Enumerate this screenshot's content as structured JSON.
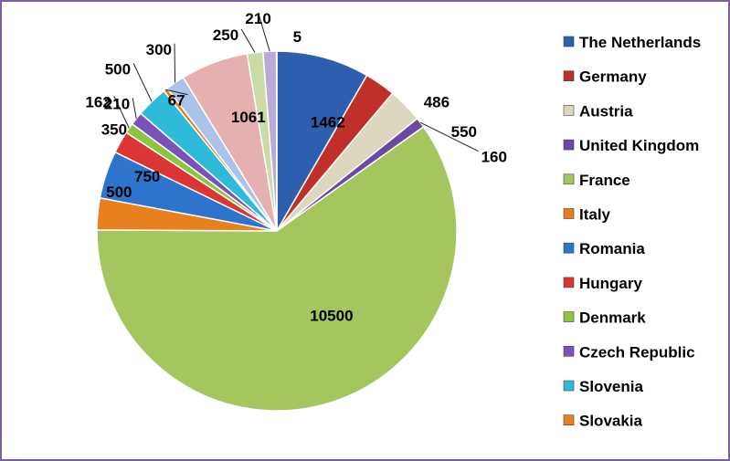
{
  "chart_data": {
    "type": "pie",
    "title": "",
    "legend_position": "right",
    "slices": [
      {
        "name": "The Netherlands",
        "value": 1462,
        "color": "#2e5fae"
      },
      {
        "name": "Germany",
        "value": 486,
        "color": "#c0302a"
      },
      {
        "name": "Austria",
        "value": 550,
        "color": "#ddd7bf"
      },
      {
        "name": "United Kingdom",
        "value": 160,
        "color": "#6b49a0"
      },
      {
        "name": "France",
        "value": 10500,
        "color": "#a5c65e"
      },
      {
        "name": "Italy",
        "value": 500,
        "color": "#e8801e"
      },
      {
        "name": "Romania",
        "value": 750,
        "color": "#2e73cc"
      },
      {
        "name": "Hungary",
        "value": 350,
        "color": "#dc3535"
      },
      {
        "name": "Denmark",
        "value": 162,
        "color": "#8cc63f"
      },
      {
        "name": "Czech Republic",
        "value": 210,
        "color": "#7b52b9"
      },
      {
        "name": "Slovenia",
        "value": 500,
        "color": "#2ebbd9"
      },
      {
        "name": "Slovakia",
        "value": 67,
        "color": "#e8801e"
      },
      {
        "name": "",
        "value": 300,
        "color": "#a9c4e8"
      },
      {
        "name": "",
        "value": 1061,
        "color": "#e6b0b0"
      },
      {
        "name": "",
        "value": 250,
        "color": "#c9dca4"
      },
      {
        "name": "",
        "value": 210,
        "color": "#b9aad6"
      },
      {
        "name": "",
        "value": 5,
        "color": "#a8d8e6"
      }
    ]
  }
}
